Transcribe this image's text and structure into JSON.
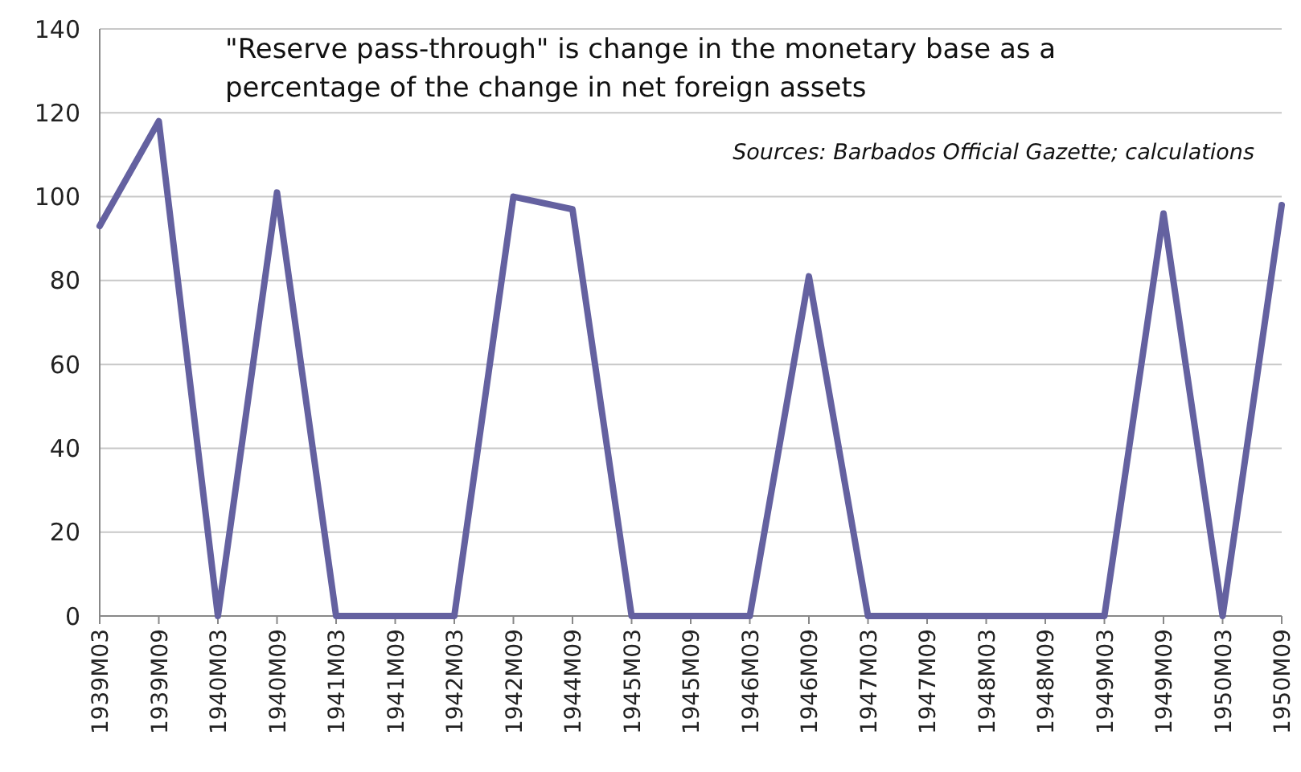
{
  "chart_data": {
    "type": "line",
    "categories": [
      "1939M03",
      "1939M09",
      "1940M03",
      "1940M09",
      "1941M03",
      "1941M09",
      "1942M03",
      "1942M09",
      "1944M09",
      "1945M03",
      "1945M09",
      "1946M03",
      "1946M09",
      "1947M03",
      "1947M09",
      "1948M03",
      "1948M09",
      "1949M03",
      "1949M09",
      "1950M03",
      "1950M09"
    ],
    "series": [
      {
        "color": "#6461a0",
        "values": [
          93,
          118,
          0,
          101,
          0,
          0,
          0,
          100,
          97,
          0,
          0,
          0,
          81,
          0,
          0,
          0,
          0,
          0,
          96,
          0,
          98
        ]
      }
    ],
    "ylim": [
      0,
      140
    ],
    "yticks": [
      0,
      20,
      40,
      60,
      80,
      100,
      120,
      140
    ],
    "grid": "y",
    "marker": "none",
    "line_style": "solid",
    "annotations": [
      "\"Reserve pass-through\" is change in the monetary base as a percentage of the change in net foreign assets",
      "Sources: Barbados Official Gazette; calculations"
    ]
  }
}
